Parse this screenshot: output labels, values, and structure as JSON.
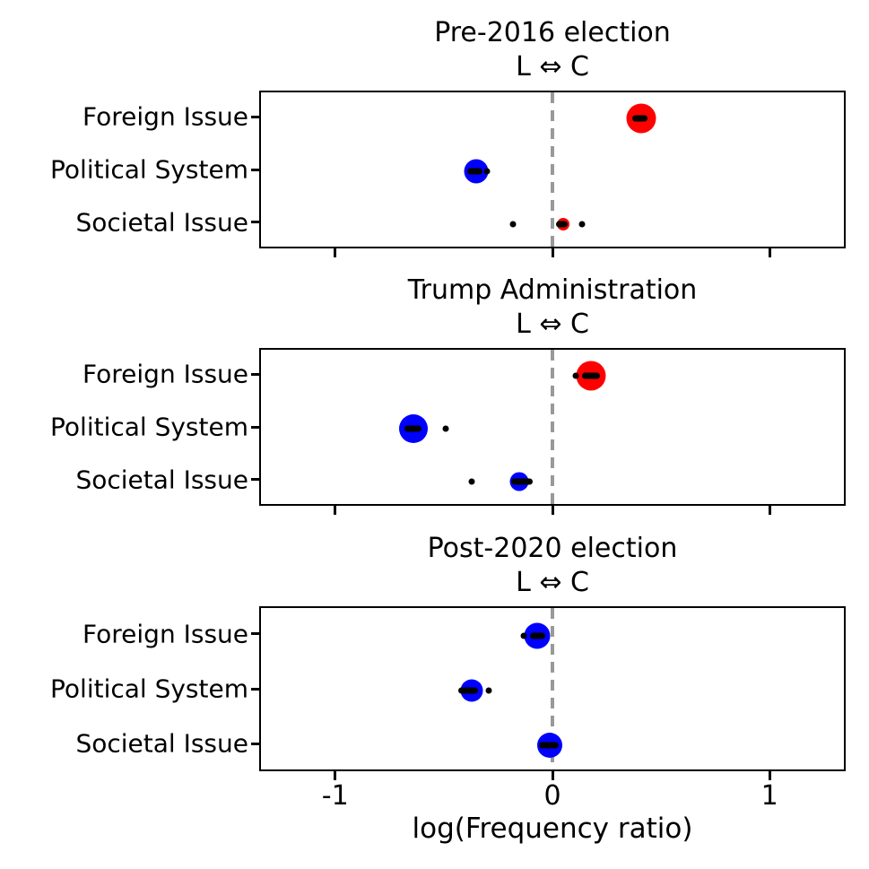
{
  "figure": {
    "xlabel": "log(Frequency ratio)",
    "background": "#ffffff"
  },
  "colors": {
    "conservative_red": "#ff0000",
    "liberal_blue": "#0000ff",
    "zero_line_gray": "#999999",
    "axis_black": "#000000",
    "marker_black": "#000000"
  },
  "chart_data": [
    {
      "type": "scatter",
      "title": "Pre-2016 election",
      "subtitle": "L ⇔ C",
      "categories": [
        "Foreign Issue",
        "Political System",
        "Societal Issue"
      ],
      "xlim": [
        -1.35,
        1.35
      ],
      "xticks": [
        -1,
        0,
        1
      ],
      "show_xtick_labels": false,
      "vline_x": 0,
      "points": [
        {
          "category": "Foreign Issue",
          "x": 0.4,
          "err": [
            0.36,
            0.43
          ],
          "dots": [],
          "color": "#ff0000",
          "diameter": 33
        },
        {
          "category": "Political System",
          "x": -0.36,
          "err": [
            -0.4,
            -0.33
          ],
          "dots": [
            -0.31
          ],
          "color": "#0000ff",
          "diameter": 27
        },
        {
          "category": "Societal Issue",
          "x": 0.04,
          "err": [
            0.01,
            0.06
          ],
          "dots": [
            -0.19,
            0.13
          ],
          "color": "#ff0000",
          "diameter": 14
        }
      ]
    },
    {
      "type": "scatter",
      "title": "Trump Administration",
      "subtitle": "L ⇔ C",
      "categories": [
        "Foreign Issue",
        "Political System",
        "Societal Issue"
      ],
      "xlim": [
        -1.35,
        1.35
      ],
      "xticks": [
        -1,
        0,
        1
      ],
      "show_xtick_labels": false,
      "vline_x": 0,
      "points": [
        {
          "category": "Foreign Issue",
          "x": 0.17,
          "err": [
            0.13,
            0.21
          ],
          "dots": [
            0.1
          ],
          "color": "#ff0000",
          "diameter": 33
        },
        {
          "category": "Political System",
          "x": -0.65,
          "err": [
            -0.69,
            -0.61
          ],
          "dots": [
            -0.5
          ],
          "color": "#0000ff",
          "diameter": 32
        },
        {
          "category": "Societal Issue",
          "x": -0.16,
          "err": [
            -0.2,
            -0.1
          ],
          "dots": [
            -0.38
          ],
          "color": "#0000ff",
          "diameter": 21
        }
      ]
    },
    {
      "type": "scatter",
      "title": "Post-2020 election",
      "subtitle": "L ⇔ C",
      "categories": [
        "Foreign Issue",
        "Political System",
        "Societal Issue"
      ],
      "xlim": [
        -1.35,
        1.35
      ],
      "xticks": [
        -1,
        0,
        1
      ],
      "show_xtick_labels": true,
      "vline_x": 0,
      "points": [
        {
          "category": "Foreign Issue",
          "x": -0.08,
          "err": [
            -0.11,
            -0.04
          ],
          "dots": [
            -0.14
          ],
          "color": "#0000ff",
          "diameter": 29
        },
        {
          "category": "Political System",
          "x": -0.38,
          "err": [
            -0.44,
            -0.35
          ],
          "dots": [
            -0.3
          ],
          "color": "#0000ff",
          "diameter": 25
        },
        {
          "category": "Societal Issue",
          "x": -0.02,
          "err": [
            -0.07,
            0.02
          ],
          "dots": [],
          "color": "#0000ff",
          "diameter": 28
        }
      ]
    }
  ]
}
